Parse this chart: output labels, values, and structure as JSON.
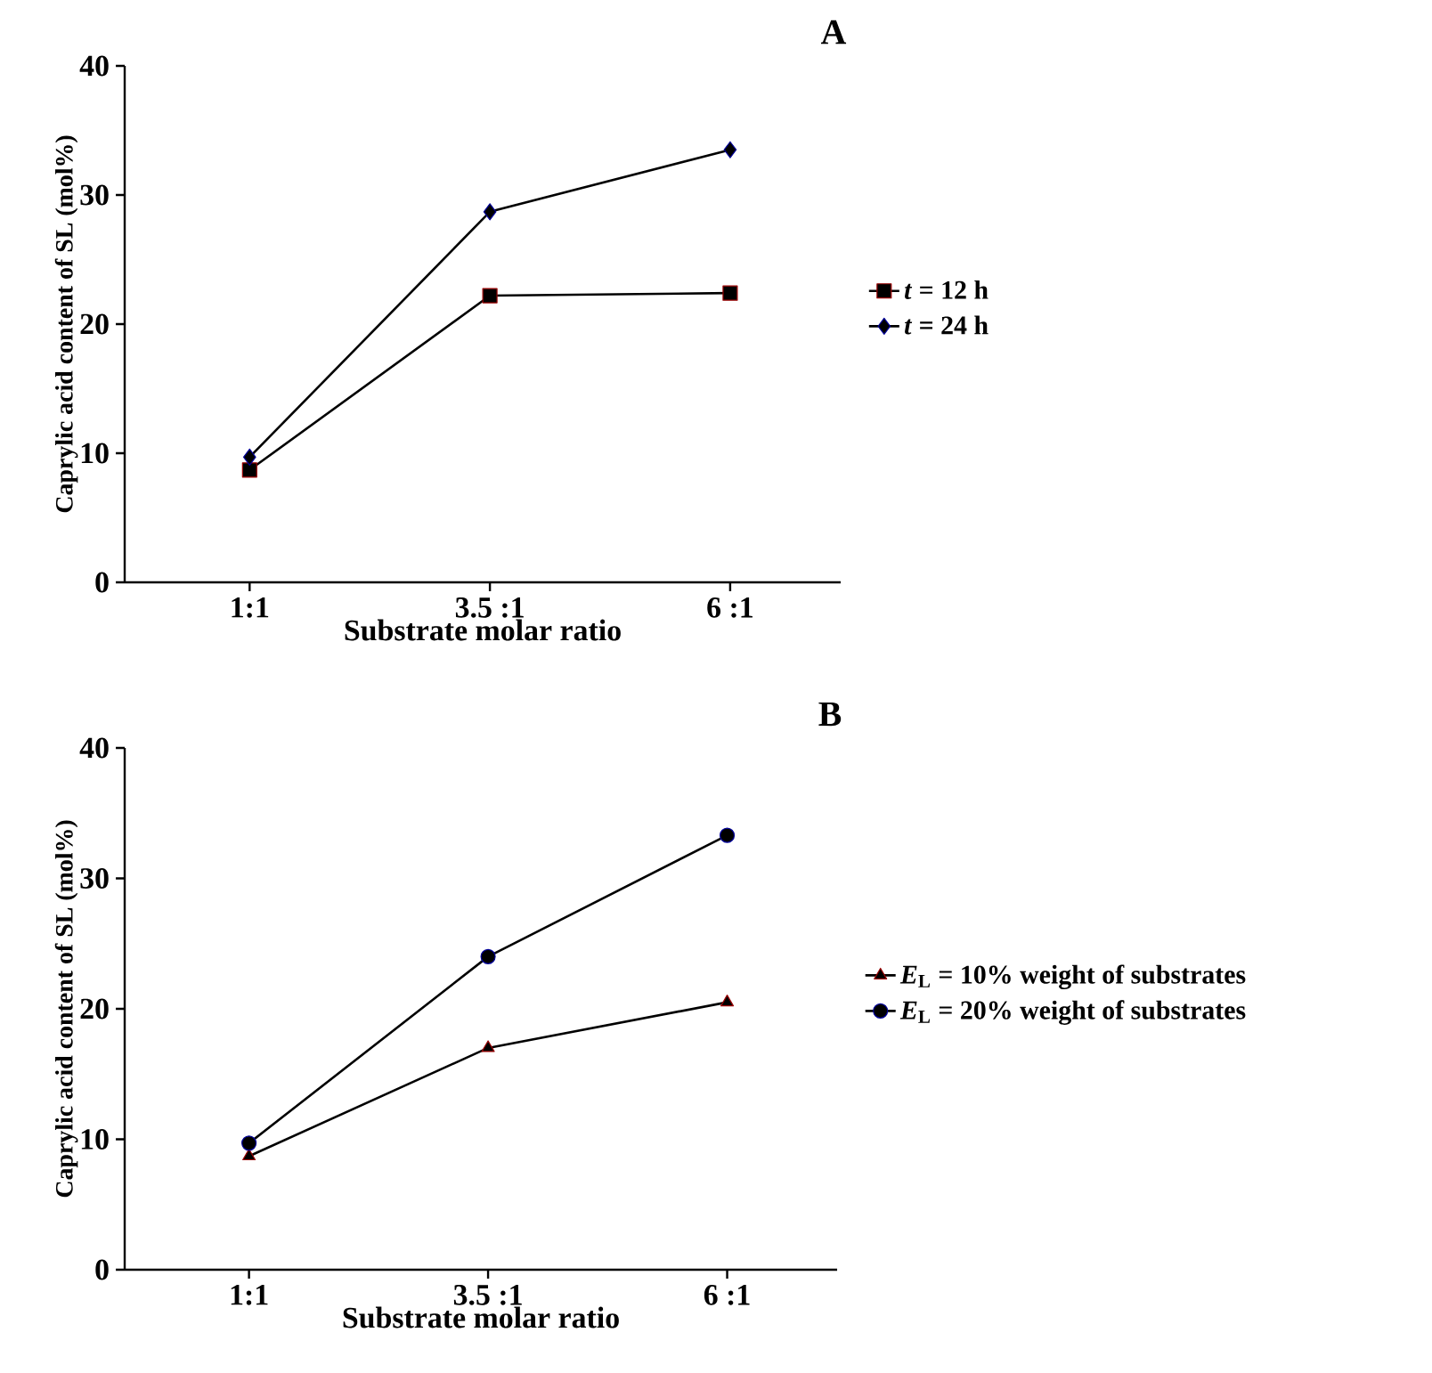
{
  "chart_data": [
    {
      "type": "line",
      "title": "A",
      "xlabel": "Substrate molar ratio",
      "ylabel": "Caprylic acid content of SL (mol%)",
      "categories": [
        "1:1",
        "3.5 :1",
        "6 :1"
      ],
      "ylim": [
        0,
        40
      ],
      "yticks": [
        0,
        10,
        20,
        30,
        40
      ],
      "legend": "right",
      "series": [
        {
          "name": "*t* = 12 h",
          "color": "#000000",
          "marker": "square",
          "values": [
            8.7,
            22.2,
            22.4
          ]
        },
        {
          "name": "*t* = 24 h",
          "color": "#000000",
          "marker": "diamond",
          "values": [
            9.7,
            28.7,
            33.5
          ]
        }
      ]
    },
    {
      "type": "line",
      "title": "B",
      "xlabel": "Substrate molar ratio",
      "ylabel": "Caprylic acid content of SL (mol%)",
      "categories": [
        "1:1",
        "3.5 :1",
        "6 :1"
      ],
      "ylim": [
        0,
        40
      ],
      "yticks": [
        0,
        10,
        20,
        30,
        40
      ],
      "legend": "right",
      "series": [
        {
          "name": "*E*$_{L}$ = 10% weight of substrates",
          "color": "#000000",
          "marker": "triangle",
          "values": [
            8.7,
            17.0,
            20.5
          ]
        },
        {
          "name": "*E*$_{L}$ = 20% weight of substrates",
          "color": "#000000",
          "marker": "circle",
          "values": [
            9.7,
            24.0,
            33.3
          ]
        }
      ]
    }
  ]
}
